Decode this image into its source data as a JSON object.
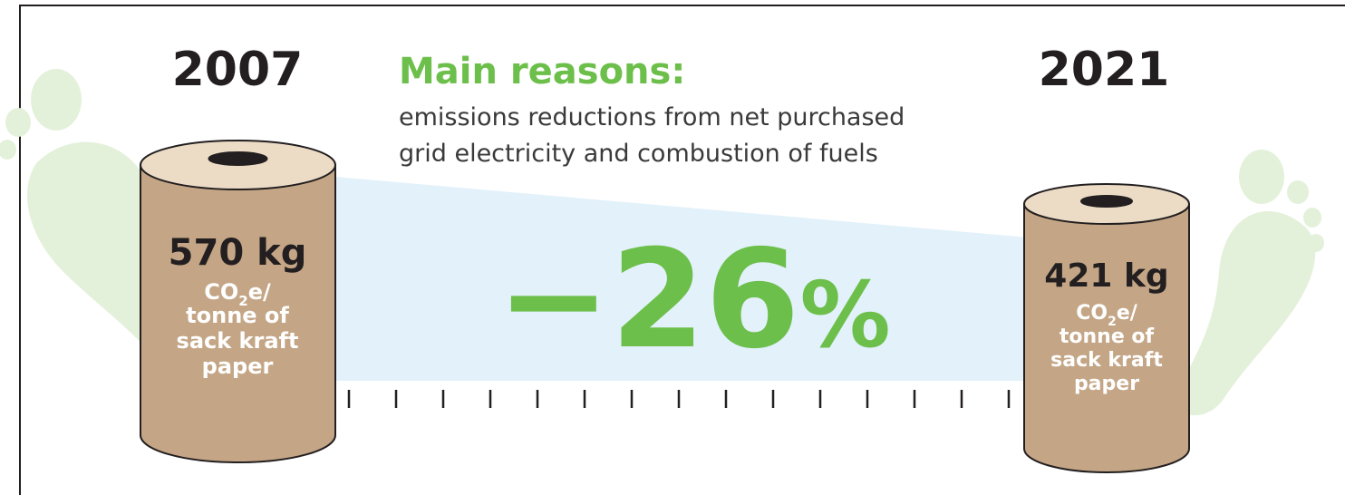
{
  "left": {
    "year": "2007",
    "amount": "570 kg",
    "unit": {
      "base": "CO",
      "subscript": "2",
      "suffix": "e/",
      "lines": [
        "tonne of",
        "sack kraft",
        "paper"
      ]
    }
  },
  "right": {
    "year": "2021",
    "amount": "421 kg",
    "unit": {
      "base": "CO",
      "subscript": "2",
      "suffix": "e/",
      "lines": [
        "tonne of",
        "sack kraft",
        "paper"
      ]
    }
  },
  "reasons": {
    "title": "Main reasons:",
    "lines": [
      "emissions reductions from net purchased",
      "grid electricity and combustion of fuels"
    ]
  },
  "change": {
    "number": "−26",
    "symbol": "%"
  }
}
